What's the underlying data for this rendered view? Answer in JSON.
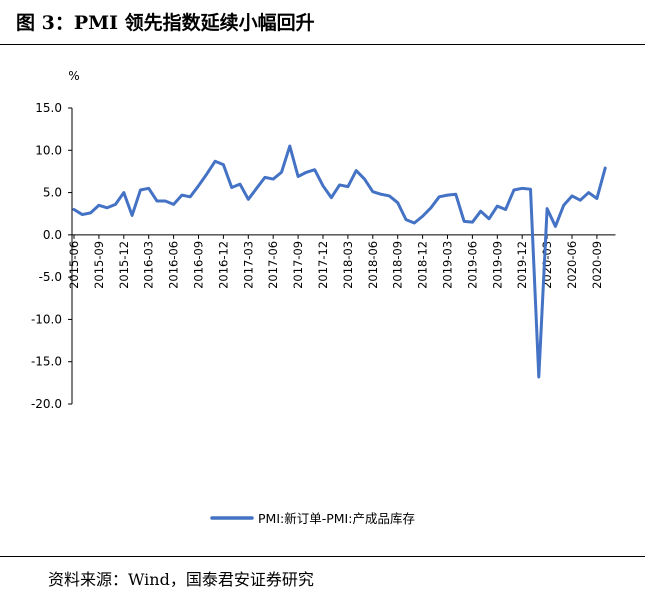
{
  "header": {
    "title": "图 3：PMI 领先指数延续小幅回升"
  },
  "footer": {
    "source": "资料来源：Wind，国泰君安证券研究"
  },
  "chart_data": {
    "type": "line",
    "title": "",
    "ylabel": "%",
    "xlabel": "",
    "ylim": [
      -20,
      15
    ],
    "y_ticks": [
      "15.0",
      "10.0",
      "5.0",
      "0.0",
      "-5.0",
      "-10.0",
      "-15.0",
      "-20.0"
    ],
    "x_tick_labels": [
      "2015-06",
      "2015-09",
      "2015-12",
      "2016-03",
      "2016-06",
      "2016-09",
      "2016-12",
      "2017-03",
      "2017-06",
      "2017-09",
      "2017-12",
      "2018-03",
      "2018-06",
      "2018-09",
      "2018-12",
      "2019-03",
      "2019-06",
      "2019-09",
      "2019-12",
      "2020-03",
      "2020-06",
      "2020-09"
    ],
    "legend": "bottom-center",
    "grid": false,
    "colors": {
      "series": "#4472C4"
    },
    "x": [
      "2015-06",
      "2015-07",
      "2015-08",
      "2015-09",
      "2015-10",
      "2015-11",
      "2015-12",
      "2016-01",
      "2016-02",
      "2016-03",
      "2016-04",
      "2016-05",
      "2016-06",
      "2016-07",
      "2016-08",
      "2016-09",
      "2016-10",
      "2016-11",
      "2016-12",
      "2017-01",
      "2017-02",
      "2017-03",
      "2017-04",
      "2017-05",
      "2017-06",
      "2017-07",
      "2017-08",
      "2017-09",
      "2017-10",
      "2017-11",
      "2017-12",
      "2018-01",
      "2018-02",
      "2018-03",
      "2018-04",
      "2018-05",
      "2018-06",
      "2018-07",
      "2018-08",
      "2018-09",
      "2018-10",
      "2018-11",
      "2018-12",
      "2019-01",
      "2019-02",
      "2019-03",
      "2019-04",
      "2019-05",
      "2019-06",
      "2019-07",
      "2019-08",
      "2019-09",
      "2019-10",
      "2019-11",
      "2019-12",
      "2020-01",
      "2020-02",
      "2020-03",
      "2020-04",
      "2020-05",
      "2020-06",
      "2020-07",
      "2020-08",
      "2020-09",
      "2020-10",
      "2020-11"
    ],
    "series": [
      {
        "name": "PMI:新订单-PMI:产成品库存",
        "values": [
          3.0,
          2.4,
          2.6,
          3.5,
          3.2,
          3.6,
          5.0,
          2.3,
          5.3,
          5.5,
          4.0,
          4.0,
          3.6,
          4.7,
          4.5,
          5.8,
          7.2,
          8.7,
          8.3,
          5.6,
          6.0,
          4.2,
          5.5,
          6.8,
          6.6,
          7.4,
          10.5,
          6.9,
          7.4,
          7.7,
          5.8,
          4.4,
          5.9,
          5.7,
          7.6,
          6.6,
          5.1,
          4.8,
          4.6,
          3.8,
          1.8,
          1.4,
          2.2,
          3.2,
          4.5,
          4.7,
          4.8,
          1.6,
          1.5,
          2.8,
          1.9,
          3.4,
          3.0,
          5.3,
          5.5,
          5.4,
          -16.8,
          3.1,
          1.0,
          3.5,
          4.6,
          4.1,
          5.0,
          4.3,
          7.9,
          null
        ]
      }
    ]
  }
}
